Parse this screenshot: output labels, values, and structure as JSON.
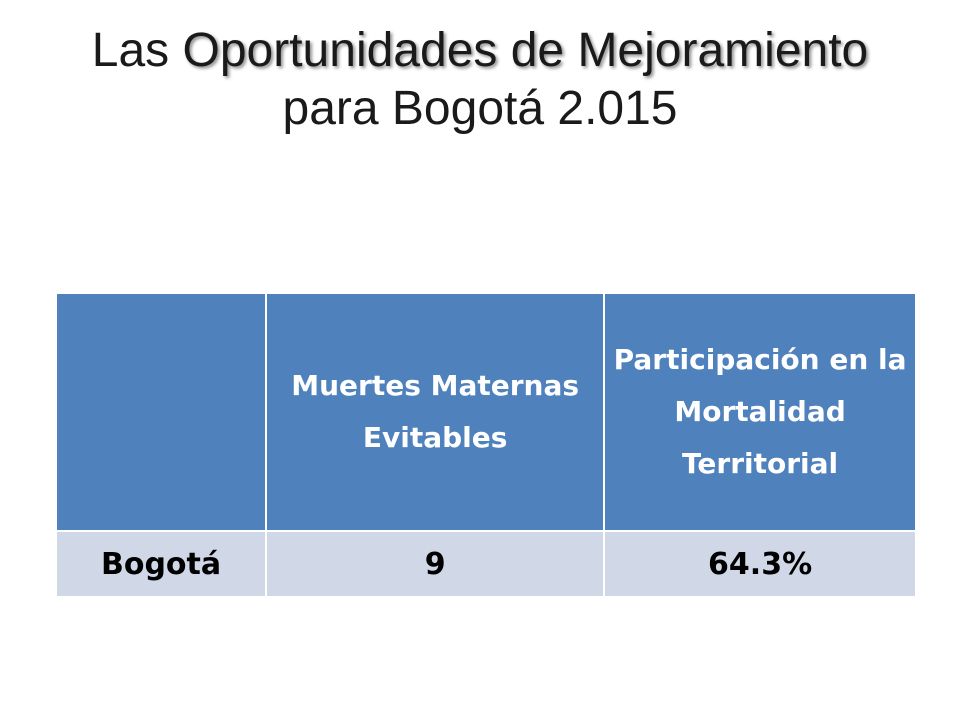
{
  "title": {
    "part1": "Las ",
    "part2": "Oportunidades de Mejoramiento",
    "part3": " para Bogotá 2.015"
  },
  "table": {
    "headers": [
      "",
      "Muertes Maternas Evitables",
      "Participación en la Mortalidad Territorial"
    ],
    "rows": [
      [
        "Bogotá",
        "9",
        "64.3%"
      ]
    ]
  }
}
